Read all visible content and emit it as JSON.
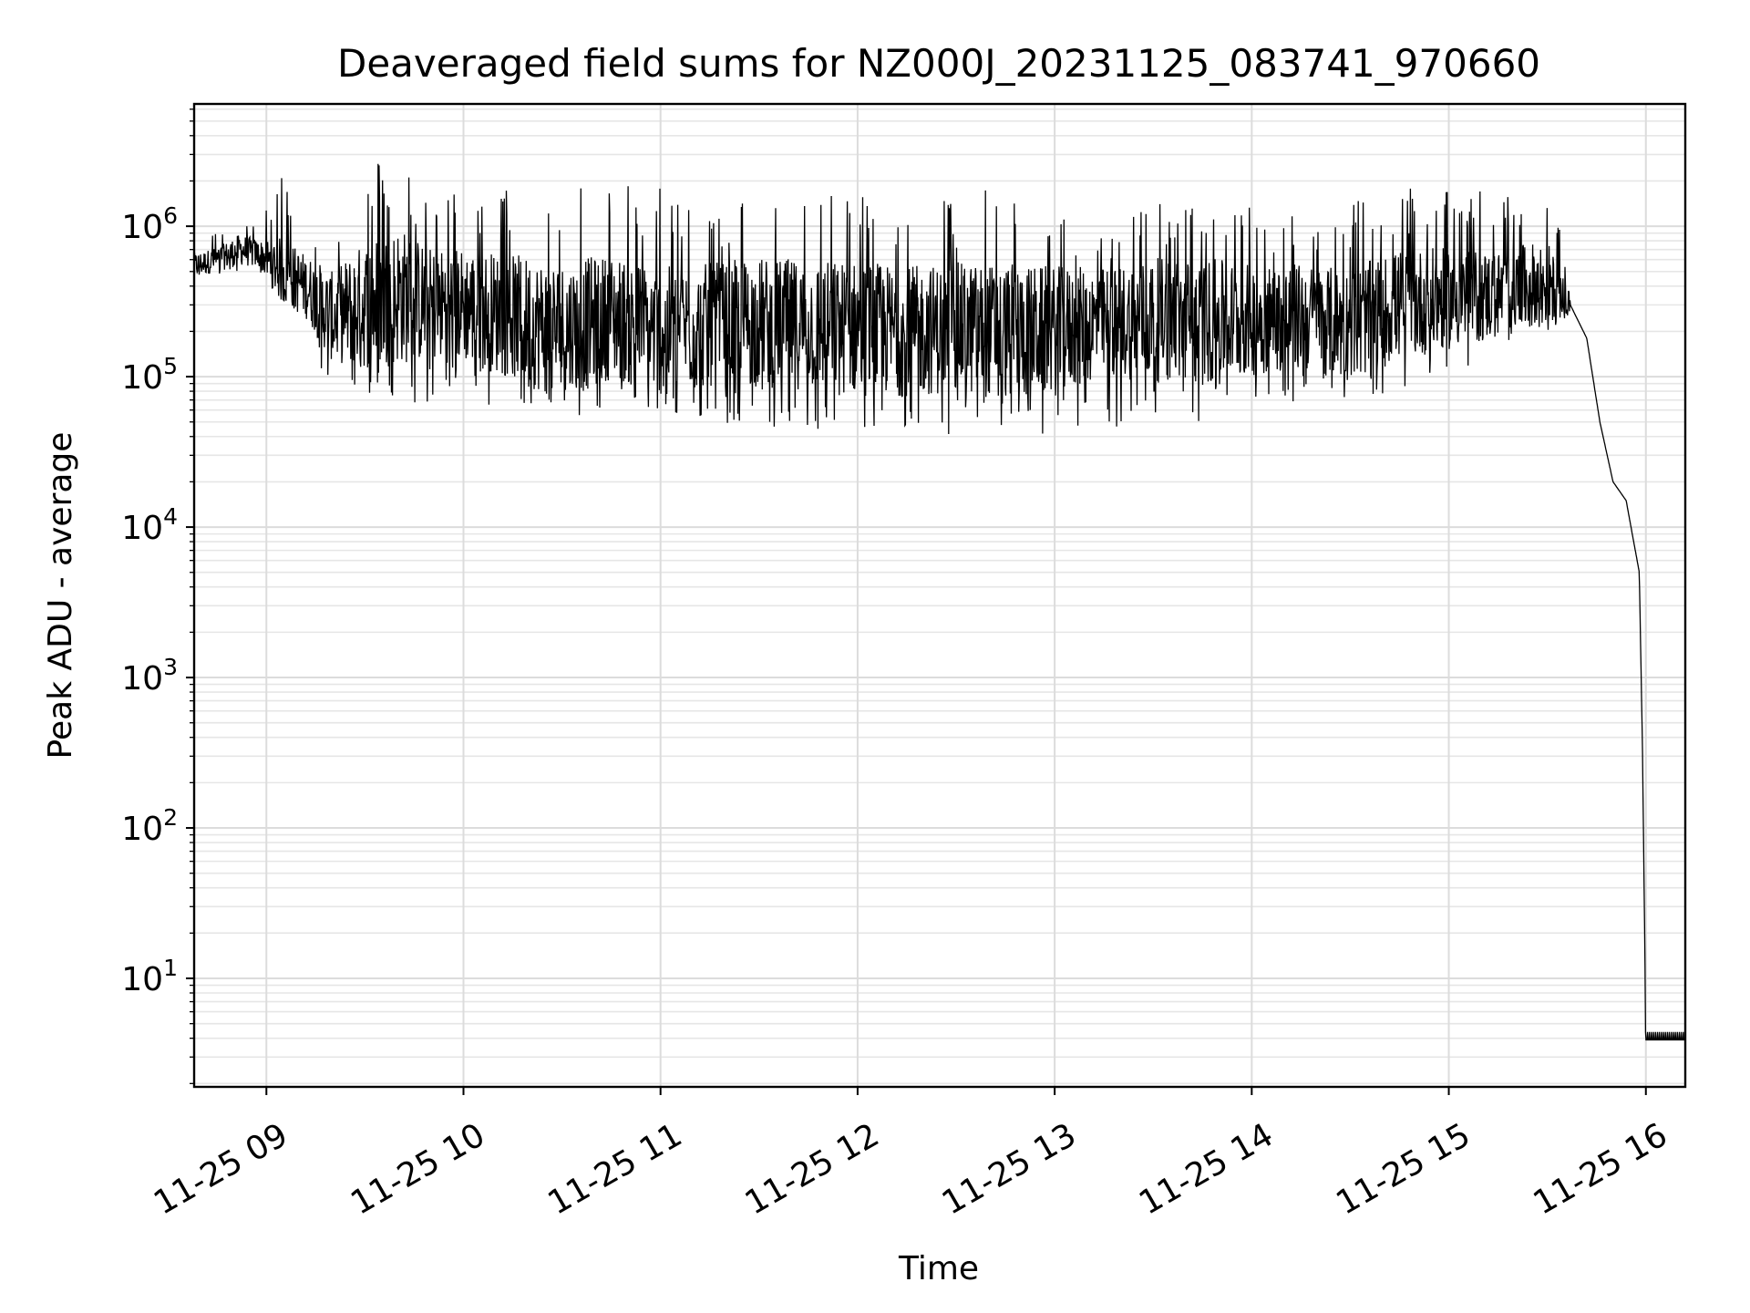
{
  "chart_data": {
    "type": "line",
    "title": "Deaveraged field sums for NZ000J_20231125_083741_970660",
    "xlabel": "Time",
    "ylabel": "Peak ADU - average",
    "yscale": "log",
    "ylim": [
      1.9,
      6500000.0
    ],
    "xlim": [
      "2023-11-25 08:38",
      "2023-11-25 16:12"
    ],
    "grid": true,
    "line_color": "#000000",
    "x_ticks": [
      "11-25 09",
      "11-25 10",
      "11-25 11",
      "11-25 12",
      "11-25 13",
      "11-25 14",
      "11-25 15",
      "11-25 16"
    ],
    "y_ticks": [
      {
        "value": 10,
        "base": "10",
        "exp": "1"
      },
      {
        "value": 100,
        "base": "10",
        "exp": "2"
      },
      {
        "value": 1000,
        "base": "10",
        "exp": "3"
      },
      {
        "value": 10000,
        "base": "10",
        "exp": "4"
      },
      {
        "value": 100000,
        "base": "10",
        "exp": "5"
      },
      {
        "value": 1000000,
        "base": "10",
        "exp": "6"
      }
    ],
    "series": [
      {
        "x": [
          "08:38",
          "08:45",
          "08:52",
          "08:58",
          "09:05",
          "09:12",
          "09:20",
          "09:30",
          "09:40",
          "09:50",
          "10:00",
          "10:15",
          "10:30",
          "10:45",
          "11:00",
          "11:15",
          "11:30",
          "11:45",
          "12:00",
          "12:15",
          "12:30",
          "12:45",
          "13:00",
          "13:15",
          "13:30",
          "13:45",
          "14:00",
          "14:15",
          "14:30",
          "14:45",
          "15:00",
          "15:15",
          "15:30",
          "15:37",
          "15:42",
          "15:46",
          "15:50",
          "15:54",
          "15:58",
          "15:59",
          "16:00",
          "16:02",
          "16:12"
        ],
        "values": [
          550000,
          600000,
          700000,
          650000,
          500000,
          400000,
          250000,
          300000,
          350000,
          300000,
          300000,
          250000,
          200000,
          250000,
          200000,
          220000,
          230000,
          220000,
          210000,
          200000,
          210000,
          200000,
          200000,
          230000,
          240000,
          230000,
          240000,
          250000,
          220000,
          300000,
          330000,
          350000,
          420000,
          300000,
          180000,
          50000,
          20000,
          15000,
          5000,
          300,
          4,
          4,
          4
        ],
        "noise_band": {
          "upper": [
            900000,
            950000,
            1200000,
            1000000,
            2400000,
            900000,
            1000000,
            2500000,
            3300000,
            1500000,
            1800000,
            1800000,
            2600000,
            1800000,
            2000000,
            1600000,
            1700000,
            1500000,
            2000000,
            1500000,
            1600000,
            2000000,
            1500000,
            1000000,
            1500000,
            1800000,
            1400000,
            1200000,
            1600000,
            1800000,
            1700000,
            1800000,
            2200000,
            450000
          ],
          "lower": [
            450000,
            480000,
            500000,
            450000,
            350000,
            150000,
            80000,
            70000,
            65000,
            60000,
            70000,
            55000,
            50000,
            55000,
            55000,
            50000,
            45000,
            40000,
            45000,
            40000,
            40000,
            45000,
            40000,
            45000,
            48000,
            50000,
            60000,
            60000,
            70000,
            80000,
            100000,
            150000,
            200000,
            250000
          ]
        }
      }
    ]
  }
}
